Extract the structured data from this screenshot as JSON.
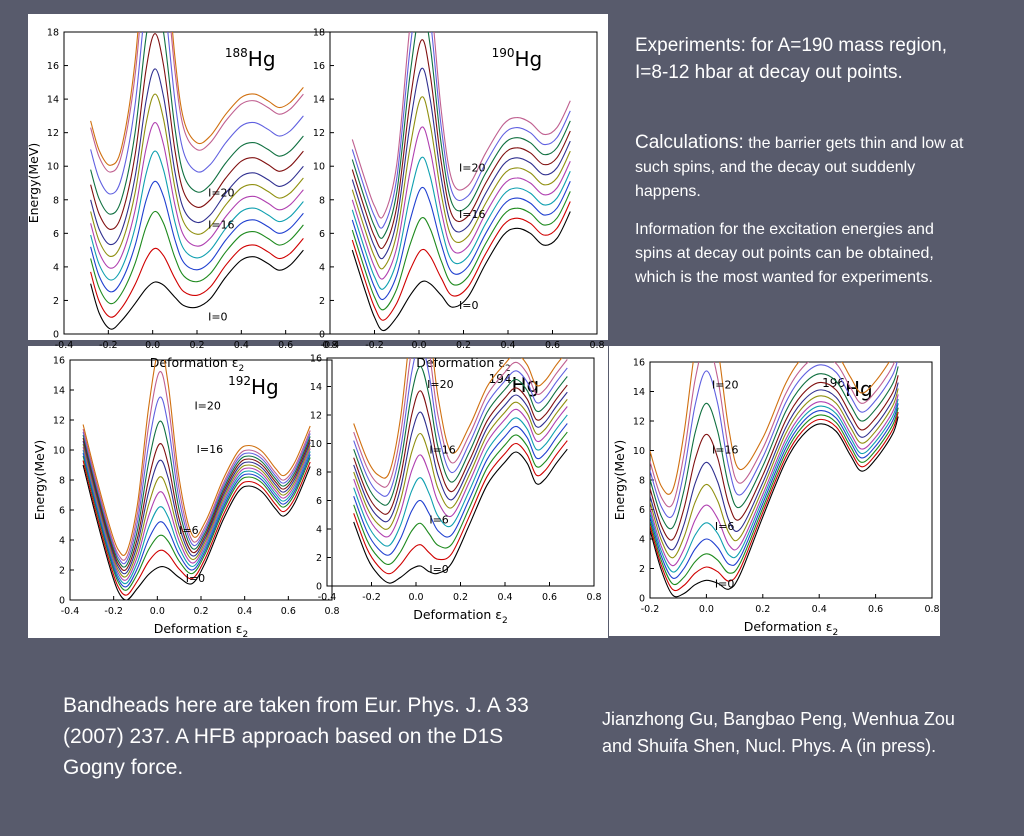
{
  "text": {
    "experiments": "Experiments: for A=190 mass region, I=8-12 hbar at decay out points.",
    "calc_lead": "Calculations:",
    "calc_rest": " the barrier gets thin and low at such spins, and the decay out suddenly happens.",
    "info": "Information for the excitation energies and spins at decay out points can be obtained, which is the most wanted for experiments.",
    "bandheads": "Bandheads here are taken from  Eur. Phys. J. A 33 (2007) 237.  A HFB approach based on the D1S Gogny force.",
    "authors": "Jianzhong Gu, Bangbao Peng, Wenhua Zou and Shuifa Shen, Nucl. Phys. A (in press)."
  },
  "chart_data": [
    {
      "type": "line",
      "nucleus_mass": "188",
      "nucleus_symbol": "Hg",
      "xlabel": "Deformation ε2",
      "ylabel": "Energy(MeV)",
      "xlim": [
        -0.4,
        0.8
      ],
      "ylim": [
        0,
        18
      ],
      "xticks": [
        -0.4,
        -0.2,
        0.0,
        0.2,
        0.4,
        0.6,
        0.8
      ],
      "yticks": [
        0,
        2,
        4,
        6,
        8,
        10,
        12,
        14,
        16,
        18
      ],
      "series_base": [
        [
          -0.28,
          3.0
        ],
        [
          -0.24,
          1.2
        ],
        [
          -0.19,
          0.3
        ],
        [
          -0.14,
          0.8
        ],
        [
          -0.08,
          1.8
        ],
        [
          -0.03,
          2.7
        ],
        [
          0.01,
          3.1
        ],
        [
          0.05,
          2.9
        ],
        [
          0.1,
          2.2
        ],
        [
          0.14,
          1.7
        ],
        [
          0.2,
          1.6
        ],
        [
          0.26,
          2.1
        ],
        [
          0.33,
          3.4
        ],
        [
          0.4,
          4.4
        ],
        [
          0.46,
          4.6
        ],
        [
          0.52,
          4.2
        ],
        [
          0.57,
          3.8
        ],
        [
          0.62,
          4.1
        ],
        [
          0.68,
          5.0
        ]
      ],
      "levels": [
        {
          "shift": 0.0,
          "peak": 0.0
        },
        {
          "shift": 0.7,
          "peak": 1.3
        },
        {
          "shift": 1.5,
          "peak": 2.7
        },
        {
          "shift": 2.2,
          "peak": 3.8
        },
        {
          "shift": 2.9,
          "peak": 4.9
        },
        {
          "shift": 3.6,
          "peak": 5.9
        },
        {
          "shift": 4.3,
          "peak": 6.9
        },
        {
          "shift": 5.0,
          "peak": 7.7
        },
        {
          "shift": 5.9,
          "peak": 8.9
        },
        {
          "shift": 6.8,
          "peak": 10.2
        },
        {
          "shift": 8.0,
          "peak": 11.6
        },
        {
          "shift": 9.3,
          "peak": 13.0
        },
        {
          "shift": 9.7,
          "peak": 14.3
        }
      ],
      "labels": [
        {
          "text": "I=0",
          "x": 0.25,
          "y": 0.8
        },
        {
          "text": "I=16",
          "x": 0.25,
          "y": 6.3
        },
        {
          "text": "I=20",
          "x": 0.25,
          "y": 8.2
        }
      ]
    },
    {
      "type": "line",
      "nucleus_mass": "190",
      "nucleus_symbol": "Hg",
      "xlabel": "Deformation ε2",
      "ylabel": "",
      "xlim": [
        -0.4,
        0.8
      ],
      "ylim": [
        0,
        18
      ],
      "xticks": [
        -0.4,
        -0.2,
        0.0,
        0.2,
        0.4,
        0.6,
        0.8
      ],
      "yticks": [
        0,
        2,
        4,
        6,
        8,
        10,
        12,
        14,
        16,
        18
      ],
      "series_base": [
        [
          -0.3,
          5.0
        ],
        [
          -0.24,
          2.5
        ],
        [
          -0.2,
          1.0
        ],
        [
          -0.16,
          0.2
        ],
        [
          -0.1,
          1.0
        ],
        [
          -0.04,
          2.3
        ],
        [
          0.01,
          3.1
        ],
        [
          0.05,
          3.0
        ],
        [
          0.1,
          2.3
        ],
        [
          0.15,
          1.6
        ],
        [
          0.22,
          2.2
        ],
        [
          0.3,
          4.2
        ],
        [
          0.38,
          5.9
        ],
        [
          0.44,
          6.3
        ],
        [
          0.5,
          6.0
        ],
        [
          0.56,
          5.3
        ],
        [
          0.62,
          5.7
        ],
        [
          0.68,
          7.3
        ]
      ],
      "levels": [
        {
          "shift": 0.0,
          "peak": 0.0
        },
        {
          "shift": 0.6,
          "peak": 1.3
        },
        {
          "shift": 1.2,
          "peak": 2.6
        },
        {
          "shift": 1.8,
          "peak": 3.8
        },
        {
          "shift": 2.4,
          "peak": 5.0
        },
        {
          "shift": 3.0,
          "peak": 6.2
        },
        {
          "shift": 3.6,
          "peak": 7.4
        },
        {
          "shift": 4.2,
          "peak": 8.5
        },
        {
          "shift": 4.8,
          "peak": 9.6
        },
        {
          "shift": 5.4,
          "peak": 11.0
        },
        {
          "shift": 6.0,
          "peak": 12.3
        },
        {
          "shift": 6.6,
          "peak": 13.5
        }
      ],
      "labels": [
        {
          "text": "I=0",
          "x": 0.18,
          "y": 1.5
        },
        {
          "text": "I=16",
          "x": 0.18,
          "y": 6.9
        },
        {
          "text": "I=20",
          "x": 0.18,
          "y": 9.7
        }
      ]
    },
    {
      "type": "line",
      "nucleus_mass": "192",
      "nucleus_symbol": "Hg",
      "xlabel": "Deformation ε2",
      "ylabel": "Energy(MeV)",
      "xlim": [
        -0.4,
        0.8
      ],
      "ylim": [
        0,
        16
      ],
      "xticks": [
        -0.4,
        -0.2,
        0.0,
        0.2,
        0.4,
        0.6,
        0.8
      ],
      "yticks": [
        0,
        2,
        4,
        6,
        8,
        10,
        12,
        14,
        16
      ],
      "series_base": [
        [
          -0.34,
          9.0
        ],
        [
          -0.28,
          5.5
        ],
        [
          -0.22,
          2.3
        ],
        [
          -0.18,
          0.6
        ],
        [
          -0.14,
          0.0
        ],
        [
          -0.09,
          0.8
        ],
        [
          -0.04,
          1.7
        ],
        [
          0.01,
          2.2
        ],
        [
          0.05,
          2.1
        ],
        [
          0.1,
          1.5
        ],
        [
          0.16,
          1.1
        ],
        [
          0.22,
          2.5
        ],
        [
          0.3,
          5.3
        ],
        [
          0.37,
          7.2
        ],
        [
          0.42,
          7.6
        ],
        [
          0.48,
          7.2
        ],
        [
          0.54,
          6.1
        ],
        [
          0.58,
          5.6
        ],
        [
          0.63,
          6.5
        ],
        [
          0.7,
          8.9
        ]
      ],
      "levels": [
        {
          "shift": 0.0,
          "peak": 0.0
        },
        {
          "shift": 0.3,
          "peak": 0.8
        },
        {
          "shift": 0.6,
          "peak": 1.5
        },
        {
          "shift": 0.8,
          "peak": 2.2
        },
        {
          "shift": 1.0,
          "peak": 3.0
        },
        {
          "shift": 1.2,
          "peak": 3.8
        },
        {
          "shift": 1.4,
          "peak": 4.6
        },
        {
          "shift": 1.6,
          "peak": 5.5
        },
        {
          "shift": 1.8,
          "peak": 6.4
        },
        {
          "shift": 2.0,
          "peak": 7.7
        },
        {
          "shift": 2.2,
          "peak": 9.1
        },
        {
          "shift": 2.4,
          "peak": 10.6
        },
        {
          "shift": 2.7,
          "peak": 11.9
        }
      ],
      "labels": [
        {
          "text": "I=0",
          "x": 0.13,
          "y": 1.2
        },
        {
          "text": "I=6",
          "x": 0.1,
          "y": 4.4
        },
        {
          "text": "I=16",
          "x": 0.18,
          "y": 9.8
        },
        {
          "text": "I=20",
          "x": 0.17,
          "y": 12.7
        }
      ]
    },
    {
      "type": "line",
      "nucleus_mass": "194",
      "nucleus_symbol": "Hg",
      "xlabel": "Deformation ε2",
      "ylabel": "",
      "xlim": [
        -0.4,
        0.8
      ],
      "ylim": [
        0,
        16
      ],
      "xticks": [
        -0.4,
        -0.2,
        0.0,
        0.2,
        0.4,
        0.6,
        0.8
      ],
      "yticks": [
        0,
        2,
        4,
        6,
        8,
        10,
        12,
        14,
        16
      ],
      "series_base": [
        [
          -0.28,
          4.5
        ],
        [
          -0.22,
          2.0
        ],
        [
          -0.17,
          0.8
        ],
        [
          -0.12,
          0.2
        ],
        [
          -0.07,
          0.6
        ],
        [
          -0.02,
          1.2
        ],
        [
          0.02,
          1.4
        ],
        [
          0.06,
          1.0
        ],
        [
          0.1,
          0.9
        ],
        [
          0.16,
          1.6
        ],
        [
          0.24,
          4.3
        ],
        [
          0.32,
          7.1
        ],
        [
          0.4,
          8.7
        ],
        [
          0.45,
          9.4
        ],
        [
          0.5,
          8.6
        ],
        [
          0.54,
          7.2
        ],
        [
          0.58,
          7.5
        ],
        [
          0.63,
          8.6
        ],
        [
          0.68,
          9.6
        ]
      ],
      "levels": [
        {
          "shift": 0.0,
          "peak": 0.0
        },
        {
          "shift": 0.6,
          "peak": 0.9
        },
        {
          "shift": 1.2,
          "peak": 1.8
        },
        {
          "shift": 1.8,
          "peak": 2.8
        },
        {
          "shift": 2.4,
          "peak": 3.8
        },
        {
          "shift": 3.0,
          "peak": 4.8
        },
        {
          "shift": 3.5,
          "peak": 5.8
        },
        {
          "shift": 4.0,
          "peak": 6.8
        },
        {
          "shift": 4.5,
          "peak": 7.8
        },
        {
          "shift": 5.1,
          "peak": 8.9
        },
        {
          "shift": 5.7,
          "peak": 10.0
        },
        {
          "shift": 6.3,
          "peak": 11.3
        },
        {
          "shift": 6.9,
          "peak": 13.0
        }
      ],
      "labels": [
        {
          "text": "I=0",
          "x": 0.06,
          "y": 0.9
        },
        {
          "text": "I=6",
          "x": 0.06,
          "y": 4.4
        },
        {
          "text": "I=16",
          "x": 0.06,
          "y": 9.3
        },
        {
          "text": "I=20",
          "x": 0.05,
          "y": 13.9
        }
      ]
    },
    {
      "type": "line",
      "nucleus_mass": "196",
      "nucleus_symbol": "Hg",
      "xlabel": "Deformation ε2",
      "ylabel": "Energy(MeV)",
      "xlim": [
        -0.2,
        0.8
      ],
      "ylim": [
        0,
        16
      ],
      "xticks": [
        -0.2,
        0.0,
        0.2,
        0.4,
        0.6,
        0.8
      ],
      "yticks": [
        0,
        2,
        4,
        6,
        8,
        10,
        12,
        14,
        16
      ],
      "series_base": [
        [
          -0.2,
          4.6
        ],
        [
          -0.16,
          1.9
        ],
        [
          -0.12,
          0.2
        ],
        [
          -0.08,
          0.3
        ],
        [
          -0.04,
          0.9
        ],
        [
          0.0,
          1.2
        ],
        [
          0.04,
          1.0
        ],
        [
          0.08,
          0.6
        ],
        [
          0.12,
          1.6
        ],
        [
          0.2,
          5.5
        ],
        [
          0.28,
          9.2
        ],
        [
          0.34,
          11.0
        ],
        [
          0.4,
          11.8
        ],
        [
          0.46,
          11.3
        ],
        [
          0.51,
          9.7
        ],
        [
          0.55,
          8.6
        ],
        [
          0.6,
          9.4
        ],
        [
          0.66,
          11.1
        ],
        [
          0.68,
          12.3
        ]
      ],
      "levels": [
        {
          "shift": 0.0,
          "peak": 0.0
        },
        {
          "shift": 0.3,
          "peak": 0.6
        },
        {
          "shift": 0.6,
          "peak": 1.2
        },
        {
          "shift": 0.9,
          "peak": 1.9
        },
        {
          "shift": 1.2,
          "peak": 2.7
        },
        {
          "shift": 1.5,
          "peak": 3.6
        },
        {
          "shift": 1.9,
          "peak": 4.6
        },
        {
          "shift": 2.3,
          "peak": 5.7
        },
        {
          "shift": 2.8,
          "peak": 7.1
        },
        {
          "shift": 3.4,
          "peak": 8.6
        },
        {
          "shift": 4.0,
          "peak": 10.2
        },
        {
          "shift": 4.6,
          "peak": 11.6
        },
        {
          "shift": 5.3,
          "peak": 13.3
        }
      ],
      "labels": [
        {
          "text": "I=0",
          "x": 0.03,
          "y": 0.7
        },
        {
          "text": "I=6",
          "x": 0.03,
          "y": 4.6
        },
        {
          "text": "I=16",
          "x": 0.02,
          "y": 9.8
        },
        {
          "text": "I=20",
          "x": 0.02,
          "y": 14.2
        }
      ]
    }
  ],
  "palette": [
    "#000000",
    "#d00000",
    "#1e8a1e",
    "#2040d0",
    "#10a0b0",
    "#b040b0",
    "#909010",
    "#303090",
    "#801010",
    "#107040",
    "#6060e0",
    "#c06090",
    "#d07010",
    "#6020a0",
    "#202060"
  ]
}
